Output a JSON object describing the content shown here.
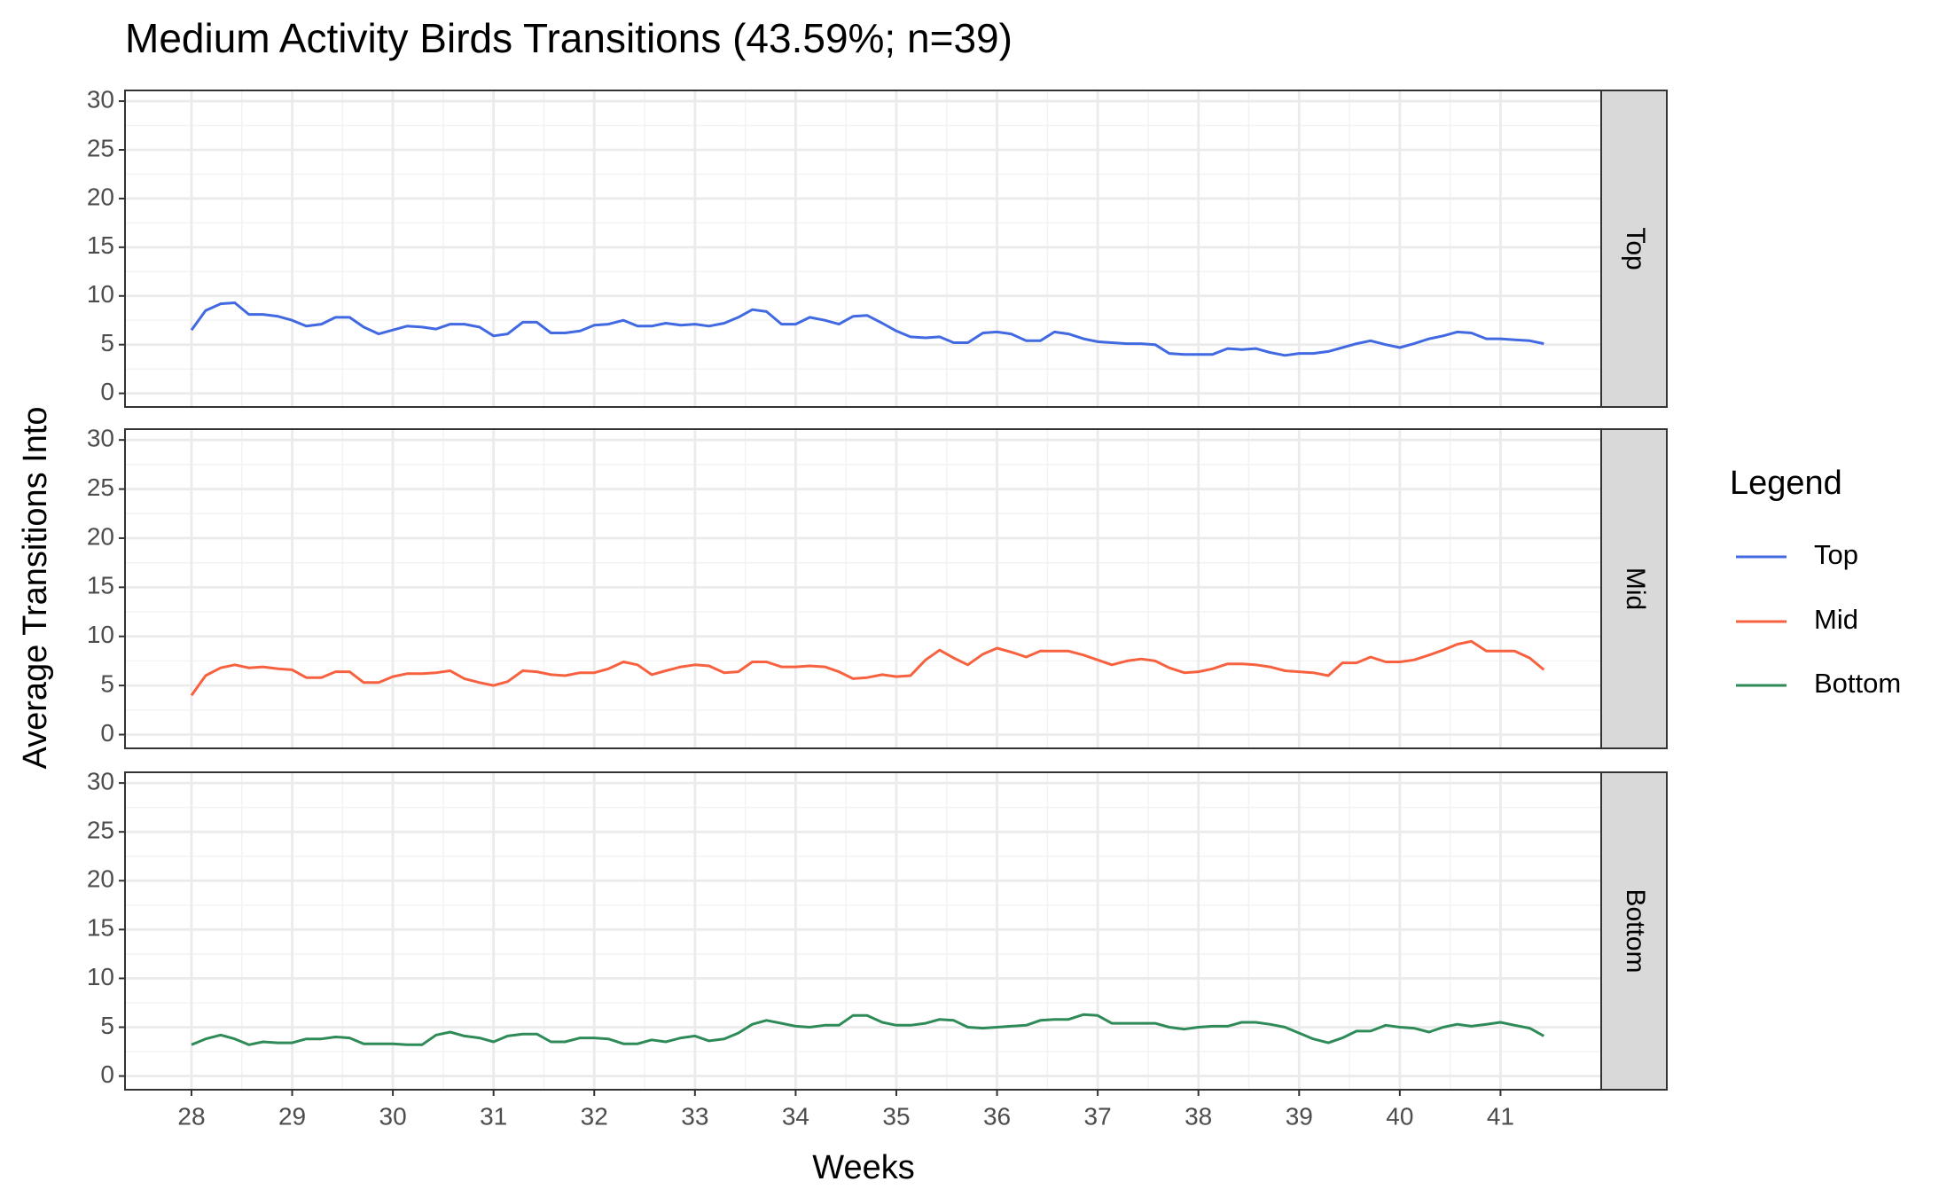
{
  "chart_data": {
    "type": "line",
    "title": "Medium Activity Birds Transitions (43.59%; n=39)",
    "x_label": "Weeks",
    "y_label": "Average Transitions Into",
    "legend_title": "Legend",
    "legend_position": "right",
    "grid": true,
    "facets": "rows",
    "xlim": [
      27.34,
      42.0
    ],
    "xticks": [
      28,
      29,
      30,
      31,
      32,
      33,
      34,
      35,
      36,
      37,
      38,
      39,
      40,
      41
    ],
    "ylim": [
      -1.4,
      31.1
    ],
    "yticks": [
      0,
      5,
      10,
      15,
      20,
      25,
      30
    ],
    "x": [
      28,
      28.14,
      28.29,
      28.43,
      28.57,
      28.71,
      28.86,
      29,
      29.14,
      29.29,
      29.43,
      29.57,
      29.71,
      29.86,
      30,
      30.14,
      30.29,
      30.43,
      30.57,
      30.71,
      30.86,
      31,
      31.14,
      31.29,
      31.43,
      31.57,
      31.71,
      31.86,
      32,
      32.14,
      32.29,
      32.43,
      32.57,
      32.71,
      32.86,
      33,
      33.14,
      33.29,
      33.43,
      33.57,
      33.71,
      33.86,
      34,
      34.14,
      34.29,
      34.43,
      34.57,
      34.71,
      34.86,
      35,
      35.14,
      35.29,
      35.43,
      35.57,
      35.71,
      35.86,
      36,
      36.14,
      36.29,
      36.43,
      36.57,
      36.71,
      36.86,
      37,
      37.14,
      37.29,
      37.43,
      37.57,
      37.71,
      37.86,
      38,
      38.14,
      38.29,
      38.43,
      38.57,
      38.71,
      38.86,
      39,
      39.14,
      39.29,
      39.43,
      39.57,
      39.71,
      39.86,
      40,
      40.14,
      40.29,
      40.43,
      40.57,
      40.71,
      40.86,
      41,
      41.14,
      41.29,
      41.43
    ],
    "series": [
      {
        "name": "Top",
        "color": "#4169e1",
        "values": [
          6.5,
          8.5,
          9.2,
          9.3,
          8.1,
          8.1,
          7.9,
          7.5,
          6.9,
          7.1,
          7.8,
          7.8,
          6.8,
          6.1,
          6.5,
          6.9,
          6.8,
          6.6,
          7.1,
          7.1,
          6.8,
          5.9,
          6.1,
          7.3,
          7.3,
          6.2,
          6.2,
          6.4,
          7.0,
          7.1,
          7.5,
          6.9,
          6.9,
          7.2,
          7.0,
          7.1,
          6.9,
          7.2,
          7.8,
          8.6,
          8.4,
          7.1,
          7.1,
          7.8,
          7.5,
          7.1,
          7.9,
          8.0,
          7.2,
          6.4,
          5.8,
          5.7,
          5.8,
          5.2,
          5.2,
          6.2,
          6.3,
          6.1,
          5.4,
          5.4,
          6.3,
          6.1,
          5.6,
          5.3,
          5.2,
          5.1,
          5.1,
          5.0,
          4.1,
          4.0,
          4.0,
          4.0,
          4.6,
          4.5,
          4.6,
          4.2,
          3.9,
          4.1,
          4.1,
          4.3,
          4.7,
          5.1,
          5.4,
          5.0,
          4.7,
          5.1,
          5.6,
          5.9,
          6.3,
          6.2,
          5.6,
          5.6,
          5.5,
          5.4,
          5.1
        ]
      },
      {
        "name": "Mid",
        "color": "#f8613f",
        "values": [
          4.0,
          6.0,
          6.8,
          7.1,
          6.8,
          6.9,
          6.7,
          6.6,
          5.8,
          5.8,
          6.4,
          6.4,
          5.3,
          5.3,
          5.9,
          6.2,
          6.2,
          6.3,
          6.5,
          5.7,
          5.3,
          5.0,
          5.4,
          6.5,
          6.4,
          6.1,
          6.0,
          6.3,
          6.3,
          6.7,
          7.4,
          7.1,
          6.1,
          6.5,
          6.9,
          7.1,
          7.0,
          6.3,
          6.4,
          7.4,
          7.4,
          6.9,
          6.9,
          7.0,
          6.9,
          6.4,
          5.7,
          5.8,
          6.1,
          5.9,
          6.0,
          7.6,
          8.6,
          7.8,
          7.1,
          8.2,
          8.8,
          8.4,
          7.9,
          8.5,
          8.5,
          8.5,
          8.1,
          7.6,
          7.1,
          7.5,
          7.7,
          7.5,
          6.8,
          6.3,
          6.4,
          6.7,
          7.2,
          7.2,
          7.1,
          6.9,
          6.5,
          6.4,
          6.3,
          6.0,
          7.3,
          7.3,
          7.9,
          7.4,
          7.4,
          7.6,
          8.1,
          8.6,
          9.2,
          9.5,
          8.5,
          8.5,
          8.5,
          7.8,
          6.6
        ]
      },
      {
        "name": "Bottom",
        "color": "#2e8b57",
        "values": [
          3.2,
          3.8,
          4.2,
          3.8,
          3.2,
          3.5,
          3.4,
          3.4,
          3.8,
          3.8,
          4.0,
          3.9,
          3.3,
          3.3,
          3.3,
          3.2,
          3.2,
          4.2,
          4.5,
          4.1,
          3.9,
          3.5,
          4.1,
          4.3,
          4.3,
          3.5,
          3.5,
          3.9,
          3.9,
          3.8,
          3.3,
          3.3,
          3.7,
          3.5,
          3.9,
          4.1,
          3.6,
          3.8,
          4.4,
          5.3,
          5.7,
          5.4,
          5.1,
          5.0,
          5.2,
          5.2,
          6.2,
          6.2,
          5.5,
          5.2,
          5.2,
          5.4,
          5.8,
          5.7,
          5.0,
          4.9,
          5.0,
          5.1,
          5.2,
          5.7,
          5.8,
          5.8,
          6.3,
          6.2,
          5.4,
          5.4,
          5.4,
          5.4,
          5.0,
          4.8,
          5.0,
          5.1,
          5.1,
          5.5,
          5.5,
          5.3,
          5.0,
          4.4,
          3.8,
          3.4,
          3.9,
          4.6,
          4.6,
          5.2,
          5.0,
          4.9,
          4.5,
          5.0,
          5.3,
          5.1,
          5.3,
          5.5,
          5.2,
          4.9,
          4.1
        ]
      }
    ]
  }
}
